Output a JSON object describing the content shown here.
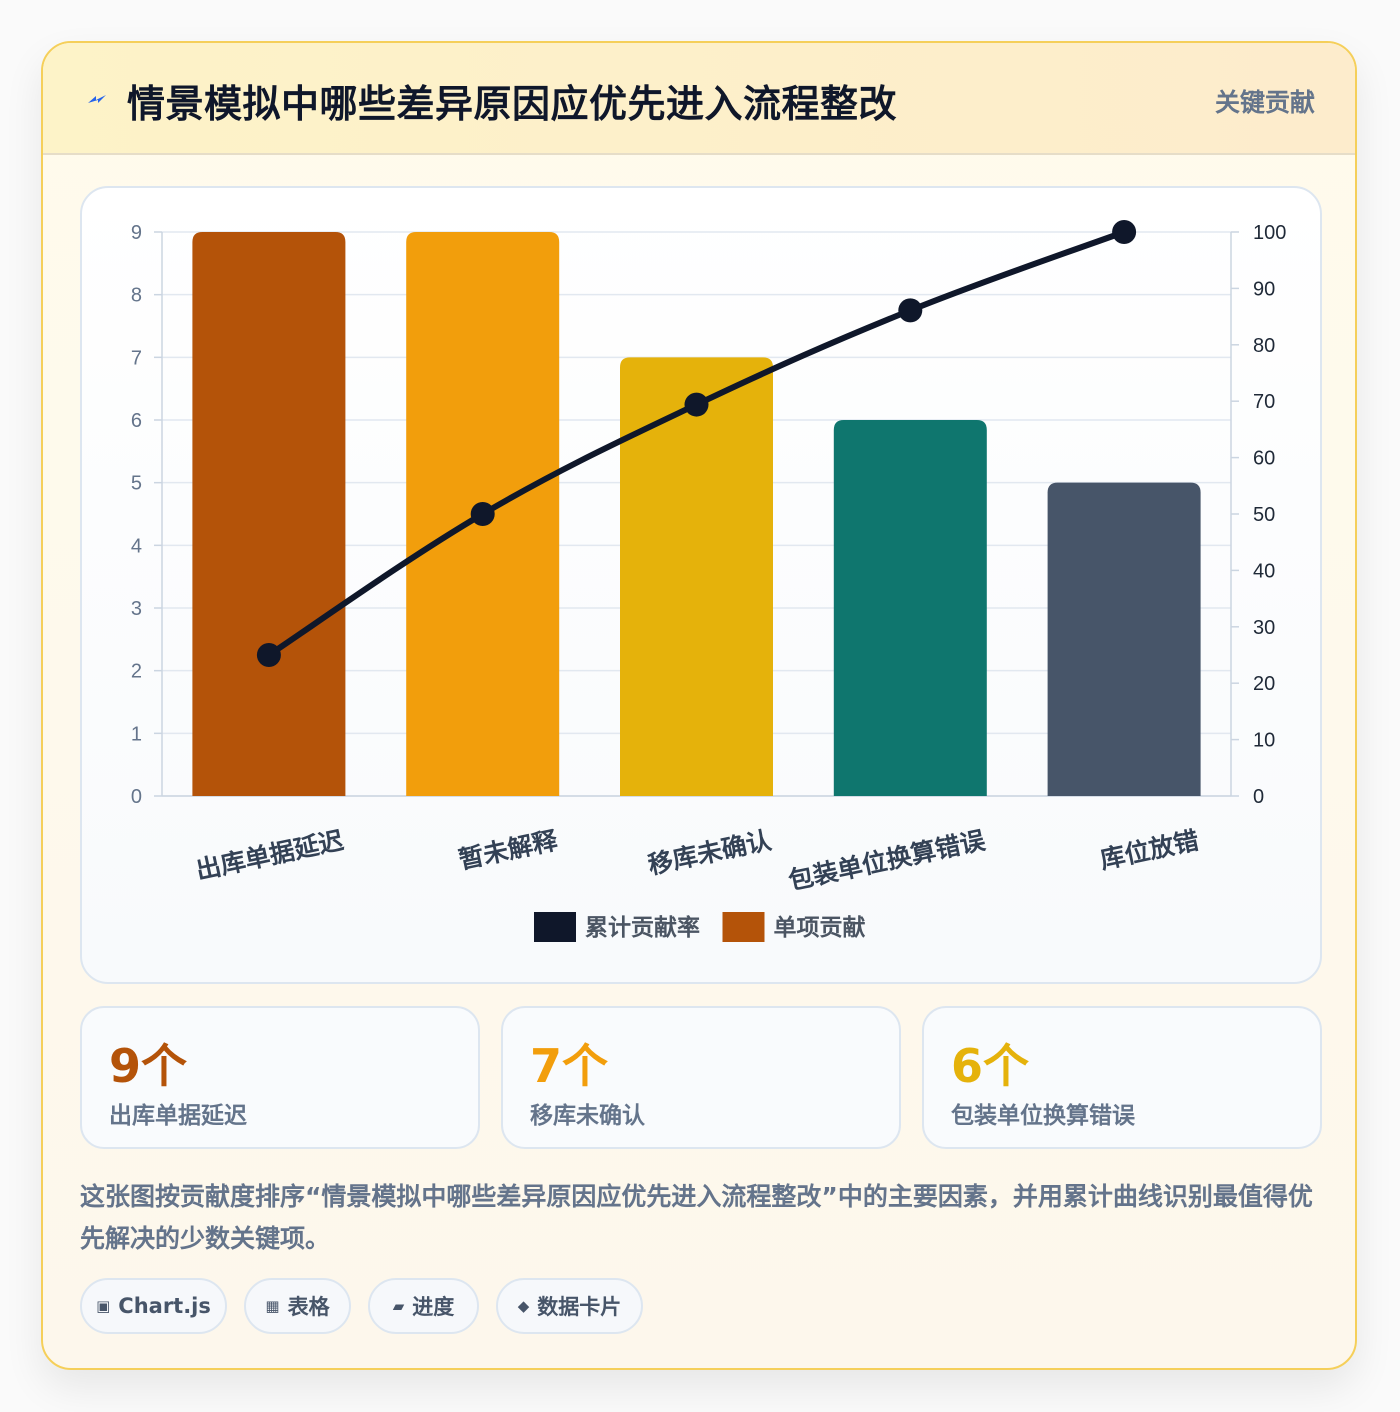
{
  "header": {
    "title": "情景模拟中哪些差异原因应优先进入流程整改",
    "tag": "关键贡献",
    "icon": "lightning-icon"
  },
  "chart_data": {
    "type": "bar",
    "categories": [
      "出库单据延迟",
      "暂未解释",
      "移库未确认",
      "包装单位换算错误",
      "库位放错"
    ],
    "series": [
      {
        "name": "单项贡献",
        "type": "bar",
        "axis": "left",
        "values": [
          9,
          9,
          7,
          6,
          5
        ],
        "colors": [
          "#b45309",
          "#f29e0c",
          "#e5b20b",
          "#0f766e",
          "#475569"
        ]
      },
      {
        "name": "累计贡献率",
        "type": "line",
        "axis": "right",
        "values": [
          25,
          50,
          69.4,
          86.1,
          100
        ],
        "color": "#0f172a"
      }
    ],
    "ylim_left": [
      0,
      9
    ],
    "ylim_right": [
      0,
      100
    ],
    "y_ticks_left": [
      "0",
      "1",
      "2",
      "3",
      "4",
      "5",
      "6",
      "7",
      "8",
      "9"
    ],
    "y_ticks_right": [
      "0",
      "10",
      "20",
      "30",
      "40",
      "50",
      "60",
      "70",
      "80",
      "90",
      "100"
    ],
    "legend": [
      {
        "label": "累计贡献率",
        "color": "#0f172a"
      },
      {
        "label": "单项贡献",
        "color": "#b45309"
      }
    ],
    "legend_position": "bottom",
    "grid": true
  },
  "stats": [
    {
      "value": "9个",
      "label": "出库单据延迟",
      "color": "#b45309"
    },
    {
      "value": "7个",
      "label": "移库未确认",
      "color": "#f29e0c"
    },
    {
      "value": "6个",
      "label": "包装单位换算错误",
      "color": "#e5b20b"
    }
  ],
  "description": "这张图按贡献度排序“情景模拟中哪些差异原因应优先进入流程整改”中的主要因素，并用累计曲线识别最值得优先解决的少数关键项。",
  "chips": [
    {
      "icon": "▣",
      "label": "Chart.js"
    },
    {
      "icon": "▦",
      "label": "表格"
    },
    {
      "icon": "▰",
      "label": "进度"
    },
    {
      "icon": "◆",
      "label": "数据卡片"
    }
  ]
}
